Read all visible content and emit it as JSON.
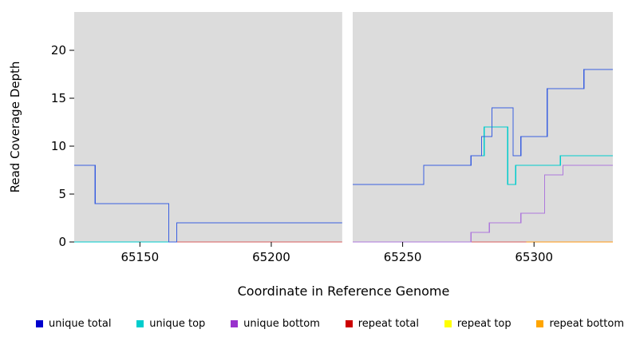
{
  "figure": {
    "xlabel": "Coordinate in Reference Genome",
    "ylabel": "Read Coverage Depth"
  },
  "legend": {
    "items": [
      {
        "label": "unique total",
        "color": "#0000CD"
      },
      {
        "label": "unique top",
        "color": "#00CDCD"
      },
      {
        "label": "unique bottom",
        "color": "#9932CC"
      },
      {
        "label": "repeat total",
        "color": "#CC0000"
      },
      {
        "label": "repeat top",
        "color": "#FFFF00"
      },
      {
        "label": "repeat bottom",
        "color": "#FFA500"
      }
    ]
  },
  "chart_data": {
    "type": "line",
    "step": true,
    "title": "",
    "xlabel": "Coordinate in Reference Genome",
    "ylabel": "Read Coverage Depth",
    "xlim": [
      65125,
      65330
    ],
    "ylim": [
      0,
      24
    ],
    "x_ticks": [
      65150,
      65200,
      65250,
      65300
    ],
    "y_ticks": [
      0,
      5,
      10,
      15,
      20
    ],
    "plot_bg": "#DCDCDC",
    "gap": {
      "from": 65227,
      "to": 65231
    },
    "series": [
      {
        "name": "repeat top",
        "line_color": "#FFFF00",
        "segments": [
          [
            [
              65125,
              0
            ],
            [
              65330,
              0
            ]
          ]
        ]
      },
      {
        "name": "repeat total",
        "line_color": "#D85C5C",
        "segments": [
          [
            [
              65125,
              0
            ],
            [
              65330,
              0
            ]
          ]
        ]
      },
      {
        "name": "repeat bottom",
        "line_color": "#FF9912",
        "segments": [
          [
            [
              65297,
              0
            ],
            [
              65330,
              0
            ]
          ]
        ]
      },
      {
        "name": "unique bottom",
        "line_color": "#AE79DC",
        "segments": [
          [
            [
              65231,
              0
            ],
            [
              65276,
              1
            ],
            [
              65283,
              2
            ],
            [
              65295,
              3
            ],
            [
              65304,
              7
            ],
            [
              65311,
              8
            ],
            [
              65330,
              8
            ]
          ]
        ]
      },
      {
        "name": "unique top",
        "line_color": "#00CDCD",
        "segments": [
          [
            [
              65125,
              0
            ],
            [
              65164,
              0
            ]
          ],
          [
            [
              65276,
              9
            ],
            [
              65281,
              12
            ],
            [
              65290,
              6
            ],
            [
              65293,
              8
            ],
            [
              65310,
              9
            ],
            [
              65330,
              9
            ]
          ]
        ]
      },
      {
        "name": "unique total",
        "line_color": "#3A5FE0",
        "segments": [
          [
            [
              65125,
              8
            ],
            [
              65133,
              4
            ],
            [
              65161,
              0
            ],
            [
              65164,
              2
            ],
            [
              65227,
              2
            ]
          ],
          [
            [
              65231,
              6
            ],
            [
              65258,
              8
            ],
            [
              65276,
              9
            ],
            [
              65280,
              11
            ],
            [
              65284,
              14
            ],
            [
              65292,
              9
            ],
            [
              65295,
              11
            ],
            [
              65305,
              16
            ],
            [
              65319,
              18
            ],
            [
              65330,
              18
            ]
          ]
        ]
      }
    ]
  }
}
